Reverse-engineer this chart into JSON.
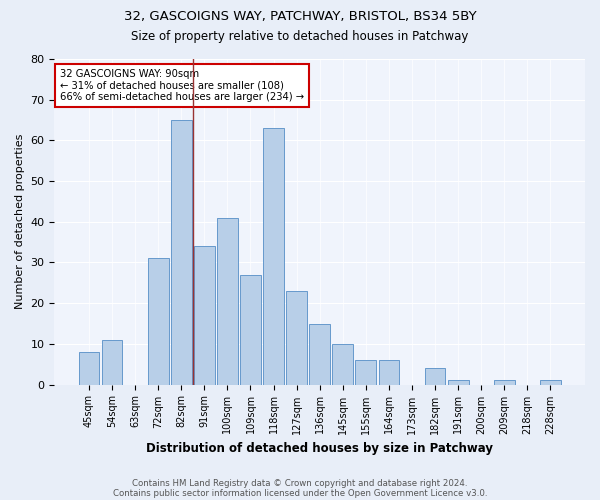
{
  "title1": "32, GASCOIGNS WAY, PATCHWAY, BRISTOL, BS34 5BY",
  "title2": "Size of property relative to detached houses in Patchway",
  "xlabel": "Distribution of detached houses by size in Patchway",
  "ylabel": "Number of detached properties",
  "bins": [
    "45sqm",
    "54sqm",
    "63sqm",
    "72sqm",
    "82sqm",
    "91sqm",
    "100sqm",
    "109sqm",
    "118sqm",
    "127sqm",
    "136sqm",
    "145sqm",
    "155sqm",
    "164sqm",
    "173sqm",
    "182sqm",
    "191sqm",
    "200sqm",
    "209sqm",
    "218sqm",
    "228sqm"
  ],
  "values": [
    8,
    11,
    0,
    31,
    65,
    34,
    41,
    27,
    63,
    23,
    15,
    10,
    6,
    6,
    0,
    4,
    1,
    0,
    1,
    0,
    1
  ],
  "bar_color": "#b8cfe8",
  "bar_edge_color": "#6699cc",
  "vline_color": "#993333",
  "annotation_line1": "32 GASCOIGNS WAY: 90sqm",
  "annotation_line2": "← 31% of detached houses are smaller (108)",
  "annotation_line3": "66% of semi-detached houses are larger (234) →",
  "annotation_box_color": "#ffffff",
  "annotation_box_edge": "#cc0000",
  "ylim": [
    0,
    80
  ],
  "yticks": [
    0,
    10,
    20,
    30,
    40,
    50,
    60,
    70,
    80
  ],
  "footer1": "Contains HM Land Registry data © Crown copyright and database right 2024.",
  "footer2": "Contains public sector information licensed under the Open Government Licence v3.0.",
  "bg_color": "#e8eef8",
  "plot_bg_color": "#f0f4fc"
}
